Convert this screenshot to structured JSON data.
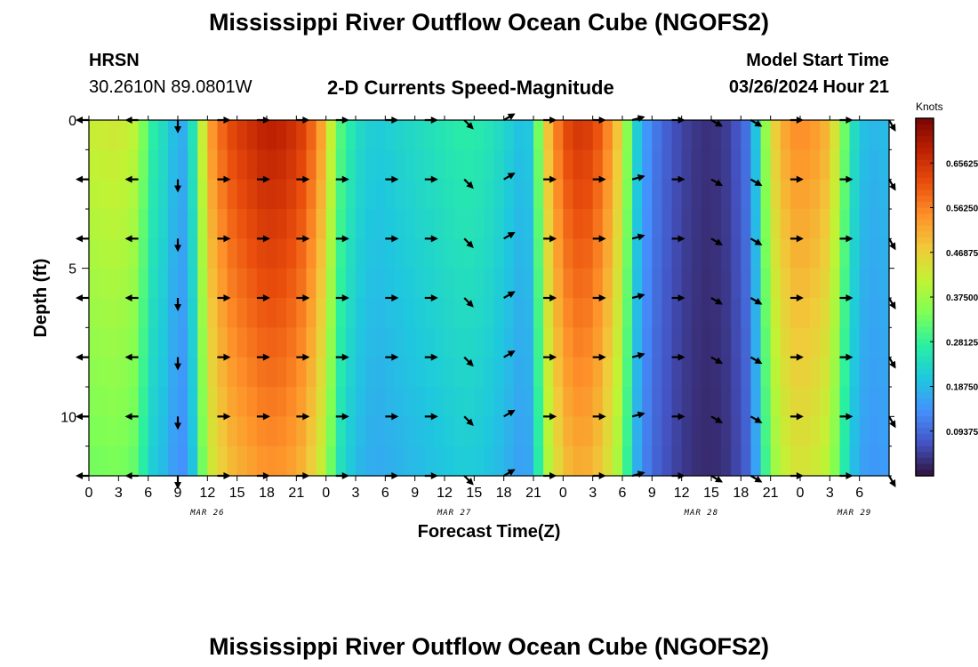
{
  "header": {
    "title": "Mississippi River Outflow Ocean Cube (NGOFS2)",
    "station": "HRSN",
    "coords": "30.2610N  89.0801W",
    "subtitle": "2-D Currents Speed-Magnitude",
    "model_start_label": "Model Start Time",
    "model_start_value": "03/26/2024 Hour 21"
  },
  "footer": {
    "title": "Mississippi River Outflow Ocean Cube (NGOFS2)"
  },
  "colorbar": {
    "unit": "Knots",
    "ticks": [
      "0.65625",
      "0.56250",
      "0.46875",
      "0.37500",
      "0.28125",
      "0.18750",
      "0.09375"
    ],
    "min": 0.0,
    "max": 0.75,
    "colors": [
      "#30123b",
      "#4454c4",
      "#4490fe",
      "#1fc8de",
      "#29efa2",
      "#7dff56",
      "#c1f334",
      "#f1ca3a",
      "#fe922a",
      "#ea4f0d",
      "#be2102",
      "#7a0403"
    ]
  },
  "chart_data": {
    "type": "heatmap",
    "xlabel": "Forecast Time(Z)",
    "ylabel": "Depth (ft)",
    "x_range_hours": [
      0,
      81
    ],
    "ylim": [
      0,
      12
    ],
    "y_reversed": true,
    "x_tick_labels": [
      "0",
      "3",
      "6",
      "9",
      "12",
      "15",
      "18",
      "21",
      "0",
      "3",
      "6",
      "9",
      "12",
      "15",
      "18",
      "21",
      "0",
      "3",
      "6",
      "9",
      "12",
      "15",
      "18",
      "21",
      "0",
      "3",
      "6"
    ],
    "y_tick_labels": [
      "0",
      "5",
      "10"
    ],
    "y_ticks": [
      0,
      5,
      10
    ],
    "date_labels": [
      "MAR 26",
      "MAR 27",
      "MAR 28",
      "MAR 29"
    ],
    "date_label_hours": [
      12,
      37,
      62,
      77.5
    ],
    "speed_profile": [
      {
        "t": 0,
        "v": 0.42
      },
      {
        "t": 3,
        "v": 0.43
      },
      {
        "t": 5,
        "v": 0.4
      },
      {
        "t": 6,
        "v": 0.28
      },
      {
        "t": 7,
        "v": 0.26
      },
      {
        "t": 8,
        "v": 0.22
      },
      {
        "t": 9,
        "v": 0.17
      },
      {
        "t": 10,
        "v": 0.18
      },
      {
        "t": 11,
        "v": 0.32
      },
      {
        "t": 12,
        "v": 0.52
      },
      {
        "t": 14,
        "v": 0.62
      },
      {
        "t": 16,
        "v": 0.66
      },
      {
        "t": 18,
        "v": 0.69
      },
      {
        "t": 20,
        "v": 0.68
      },
      {
        "t": 22,
        "v": 0.63
      },
      {
        "t": 24,
        "v": 0.5
      },
      {
        "t": 25,
        "v": 0.33
      },
      {
        "t": 27,
        "v": 0.24
      },
      {
        "t": 29,
        "v": 0.21
      },
      {
        "t": 32,
        "v": 0.23
      },
      {
        "t": 35,
        "v": 0.25
      },
      {
        "t": 38,
        "v": 0.27
      },
      {
        "t": 40,
        "v": 0.26
      },
      {
        "t": 42,
        "v": 0.23
      },
      {
        "t": 44,
        "v": 0.19
      },
      {
        "t": 45,
        "v": 0.22
      },
      {
        "t": 46,
        "v": 0.45
      },
      {
        "t": 48,
        "v": 0.62
      },
      {
        "t": 50,
        "v": 0.66
      },
      {
        "t": 52,
        "v": 0.6
      },
      {
        "t": 54,
        "v": 0.45
      },
      {
        "t": 55,
        "v": 0.26
      },
      {
        "t": 56,
        "v": 0.17
      },
      {
        "t": 57,
        "v": 0.12
      },
      {
        "t": 59,
        "v": 0.07
      },
      {
        "t": 61,
        "v": 0.04
      },
      {
        "t": 63,
        "v": 0.03
      },
      {
        "t": 65,
        "v": 0.05
      },
      {
        "t": 67,
        "v": 0.12
      },
      {
        "t": 68,
        "v": 0.28
      },
      {
        "t": 69,
        "v": 0.45
      },
      {
        "t": 71,
        "v": 0.55
      },
      {
        "t": 73,
        "v": 0.55
      },
      {
        "t": 75,
        "v": 0.5
      },
      {
        "t": 76,
        "v": 0.38
      },
      {
        "t": 77,
        "v": 0.28
      },
      {
        "t": 78,
        "v": 0.2
      },
      {
        "t": 80,
        "v": 0.18
      },
      {
        "t": 81,
        "v": 0.2
      }
    ],
    "depth_levels": [
      0,
      2,
      4,
      6,
      8,
      10,
      12
    ],
    "arrow_times": [
      0,
      5,
      9,
      13,
      17,
      21,
      25,
      30,
      34,
      38,
      42,
      46,
      51,
      55,
      59,
      63,
      67,
      71,
      76,
      81
    ],
    "arrow_directions_deg": [
      180,
      180,
      270,
      0,
      0,
      0,
      0,
      0,
      0,
      315,
      30,
      0,
      0,
      15,
      0,
      330,
      330,
      0,
      0,
      300
    ]
  }
}
